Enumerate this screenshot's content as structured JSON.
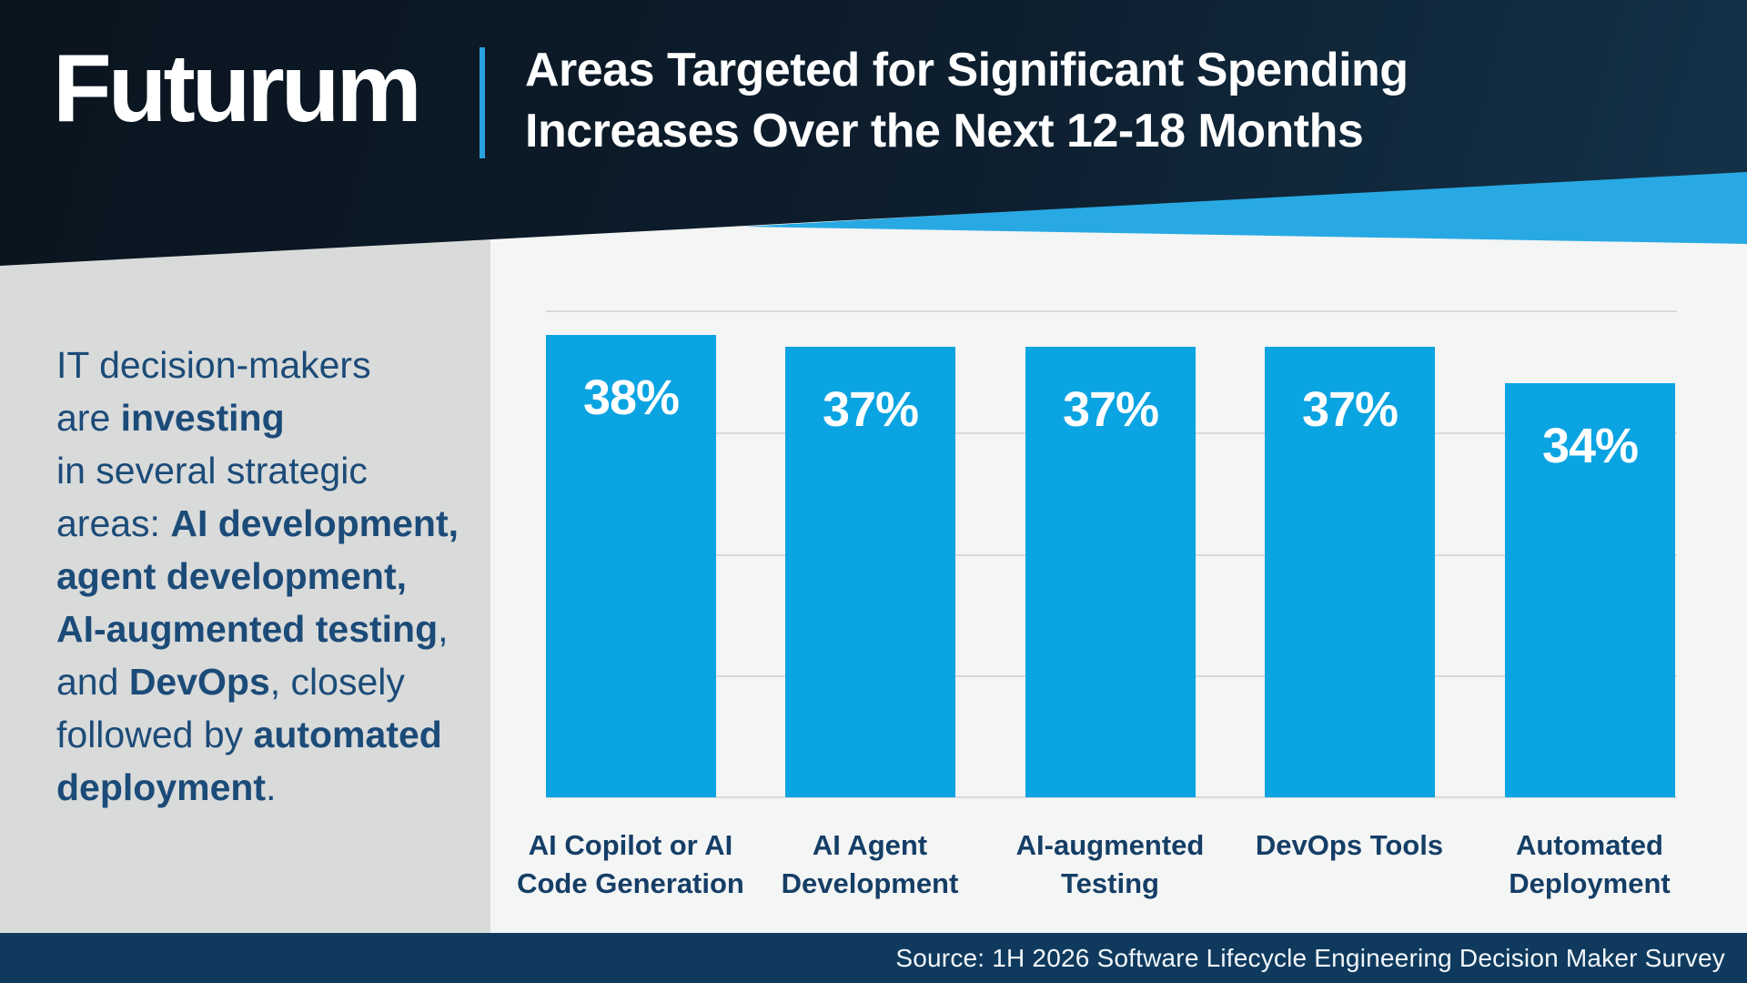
{
  "brand": {
    "logo_text": "Futurum"
  },
  "header": {
    "title_line1": "Areas Targeted for Significant Spending",
    "title_line2": "Increases Over the Next 12-18 Months"
  },
  "intro": {
    "lines": [
      [
        {
          "t": "IT decision-makers",
          "b": 0
        }
      ],
      [
        {
          "t": "are ",
          "b": 0
        },
        {
          "t": "investing",
          "b": 1
        }
      ],
      [
        {
          "t": "in several strategic",
          "b": 0
        }
      ],
      [
        {
          "t": "areas: ",
          "b": 0
        },
        {
          "t": "AI development,",
          "b": 1
        }
      ],
      [
        {
          "t": "agent development,",
          "b": 1
        }
      ],
      [
        {
          "t": "AI-augmented testing",
          "b": 1
        },
        {
          "t": ",",
          "b": 0
        }
      ],
      [
        {
          "t": "and ",
          "b": 0
        },
        {
          "t": "DevOps",
          "b": 1
        },
        {
          "t": ", closely",
          "b": 0
        }
      ],
      [
        {
          "t": "followed by ",
          "b": 0
        },
        {
          "t": "automated",
          "b": 1
        }
      ],
      [
        {
          "t": "deployment",
          "b": 1
        },
        {
          "t": ".",
          "b": 0
        }
      ]
    ]
  },
  "chart_data": {
    "type": "bar",
    "title": "Areas Targeted for Significant Spending Increases Over the Next 12-18 Months",
    "categories": [
      "AI Copilot or AI Code Generation",
      "AI Agent Development",
      "AI-augmented Testing",
      "DevOps Tools",
      "Automated Deployment"
    ],
    "categories_lines": [
      [
        "AI Copilot or AI",
        "Code Generation"
      ],
      [
        "AI Agent",
        "Development"
      ],
      [
        "AI-augmented",
        "Testing"
      ],
      [
        "DevOps Tools"
      ],
      [
        "Automated",
        "Deployment"
      ]
    ],
    "values": [
      38,
      37,
      37,
      37,
      34
    ],
    "value_labels": [
      "38%",
      "37%",
      "37%",
      "37%",
      "34%"
    ],
    "xlabel": "",
    "ylabel": "",
    "ylim": [
      0,
      40
    ],
    "gridlines_every": 10,
    "grid": "horizontal, tick labels hidden",
    "legend_position": "none",
    "bar_color": "#0ba4e2"
  },
  "footer": {
    "source_text": "Source: 1H 2026 Software Lifecycle Engineering Decision Maker Survey"
  },
  "colors": {
    "header_dark_navy_left": "#0a141e",
    "header_dark_navy_right": "#143249",
    "accent_light_blue": "#28a9e3",
    "divider_blue": "#2aa2e0",
    "bar_blue": "#0ba4e2",
    "sidebar_gray": "#d9dada",
    "chart_background": "#f4f5f5",
    "gridline_gray": "#d9d9d9",
    "intro_text_navy": "#1b4b78",
    "category_text_navy": "#153e66",
    "footer_navy": "#0f3a5e"
  }
}
